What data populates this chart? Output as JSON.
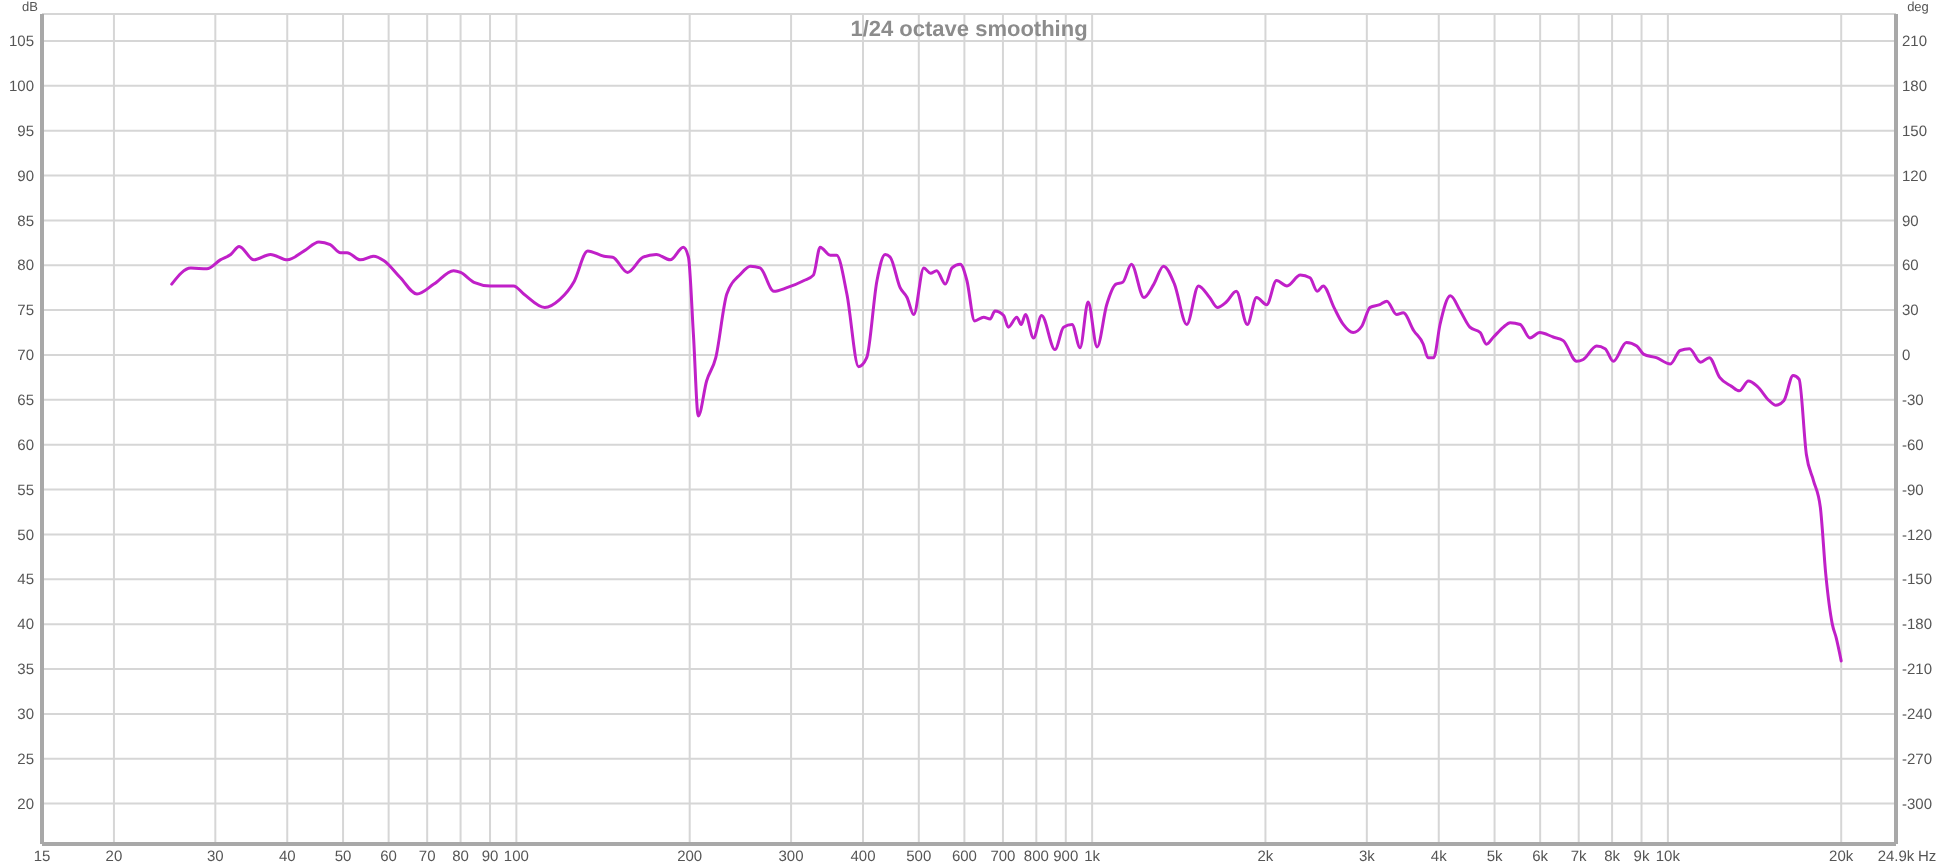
{
  "chart_data": {
    "type": "line",
    "title": "1/24 octave smoothing",
    "xlabel": "Hz",
    "ylabel": "dB",
    "y2label": "deg",
    "log": "x",
    "grid": true,
    "x": [
      25.2,
      27.2,
      29.0,
      30.6,
      31.9,
      33.0,
      35.0,
      37.4,
      40.0,
      42.8,
      45.4,
      47.5,
      49.5,
      50.8,
      53.6,
      56.5,
      58.9,
      62.9,
      67.2,
      71.9,
      77.8,
      80.0,
      84.4,
      90.1,
      98.9,
      103,
      112,
      119,
      126,
      133,
      142,
      147,
      156,
      166,
      175,
      185,
      195,
      199,
      203,
      207,
      214,
      222,
      232,
      245,
      255,
      265,
      280,
      295,
      316,
      328,
      337,
      351,
      360,
      375,
      393,
      406,
      423,
      437,
      446,
      464,
      477,
      490,
      510,
      524,
      537,
      556,
      571,
      590,
      606,
      625,
      648,
      665,
      678,
      702,
      715,
      740,
      753,
      766,
      791,
      817,
      862,
      892,
      923,
      953,
      984,
      1020,
      1060,
      1100,
      1130,
      1170,
      1230,
      1280,
      1330,
      1390,
      1460,
      1530,
      1600,
      1650,
      1710,
      1780,
      1860,
      1930,
      2010,
      2090,
      2180,
      2300,
      2390,
      2460,
      2520,
      2630,
      2730,
      2840,
      2940,
      3040,
      3160,
      3250,
      3380,
      3470,
      3620,
      3760,
      3830,
      3920,
      4020,
      4190,
      4360,
      4530,
      4720,
      4840,
      4980,
      5180,
      5320,
      5540,
      5760,
      5990,
      6320,
      6580,
      6940,
      7130,
      7520,
      7780,
      8040,
      8470,
      8830,
      9070,
      9550,
      10100,
      10500,
      10900,
      11400,
      11800,
      12300,
      12900,
      13300,
      13800,
      14300,
      15000,
      15400,
      15900,
      16500,
      16900,
      17400,
      17900,
      18400,
      18800,
      19300,
      19600,
      20000
    ],
    "series": [
      {
        "color": "#c020c8",
        "values": [
          77.9,
          79.7,
          79.6,
          80.6,
          81.2,
          82.1,
          80.6,
          81.2,
          80.6,
          81.6,
          82.6,
          82.3,
          81.4,
          81.4,
          80.6,
          81.0,
          80.5,
          78.6,
          76.8,
          77.9,
          79.4,
          79.2,
          78.1,
          77.7,
          77.7,
          76.8,
          75.3,
          76.2,
          78.2,
          81.6,
          81.0,
          80.9,
          79.2,
          80.9,
          81.2,
          80.6,
          82.0,
          80.9,
          72.3,
          63.2,
          67.1,
          69.7,
          76.8,
          79.0,
          79.9,
          79.7,
          77.1,
          77.5,
          78.3,
          78.9,
          82.0,
          81.1,
          81.1,
          76.8,
          68.7,
          69.7,
          78.3,
          81.2,
          80.9,
          77.5,
          76.4,
          74.5,
          79.7,
          79.1,
          79.4,
          77.9,
          79.7,
          80.1,
          78.3,
          73.8,
          74.2,
          74.0,
          74.9,
          74.4,
          73.1,
          74.2,
          73.4,
          74.5,
          71.9,
          74.4,
          70.6,
          73.1,
          73.4,
          70.8,
          75.9,
          70.9,
          75.6,
          77.9,
          78.1,
          80.1,
          76.4,
          77.9,
          79.9,
          77.9,
          73.4,
          77.7,
          76.4,
          75.3,
          75.9,
          77.1,
          73.4,
          76.4,
          75.6,
          78.3,
          77.7,
          78.9,
          78.6,
          77.1,
          77.7,
          75.3,
          73.4,
          72.5,
          73.2,
          75.3,
          75.6,
          76.0,
          74.5,
          74.7,
          72.7,
          71.2,
          69.7,
          69.7,
          73.4,
          76.6,
          74.9,
          73.1,
          72.5,
          71.2,
          72.0,
          73.1,
          73.6,
          73.4,
          71.9,
          72.5,
          72.0,
          71.6,
          69.3,
          69.5,
          71.0,
          70.7,
          69.3,
          71.4,
          71.0,
          70.1,
          69.7,
          69.0,
          70.5,
          70.7,
          69.2,
          69.7,
          67.5,
          66.5,
          66.0,
          67.1,
          66.5,
          64.9,
          64.4,
          64.9,
          67.7,
          67.3,
          58.9,
          56.0,
          53.0,
          45.6,
          40.0,
          38.5,
          35.9
        ]
      }
    ],
    "xlim": [
      15,
      24900
    ],
    "ylim": [
      15.5,
      108
    ],
    "y2lim": [
      -327,
      228
    ],
    "xticks": [
      15,
      20,
      30,
      40,
      50,
      60,
      70,
      80,
      90,
      100,
      200,
      300,
      400,
      500,
      600,
      700,
      800,
      900,
      {
        "value": 1000,
        "label": "1k"
      },
      {
        "value": 2000,
        "label": "2k"
      },
      {
        "value": 3000,
        "label": "3k"
      },
      {
        "value": 4000,
        "label": "4k"
      },
      {
        "value": 5000,
        "label": "5k"
      },
      {
        "value": 6000,
        "label": "6k"
      },
      {
        "value": 7000,
        "label": "7k"
      },
      {
        "value": 8000,
        "label": "8k"
      },
      {
        "value": 9000,
        "label": "9k"
      },
      {
        "value": 10000,
        "label": "10k"
      },
      {
        "value": 20000,
        "label": "20k"
      },
      {
        "value": 24900,
        "label": "24.9k"
      }
    ],
    "yticks": [
      20,
      25,
      30,
      35,
      40,
      45,
      50,
      55,
      60,
      65,
      70,
      75,
      80,
      85,
      90,
      95,
      100,
      105
    ],
    "y2ticks": [
      -300,
      -270,
      -240,
      -210,
      -180,
      -150,
      -120,
      -90,
      -60,
      -30,
      0,
      30,
      60,
      90,
      120,
      150,
      180,
      210
    ]
  }
}
